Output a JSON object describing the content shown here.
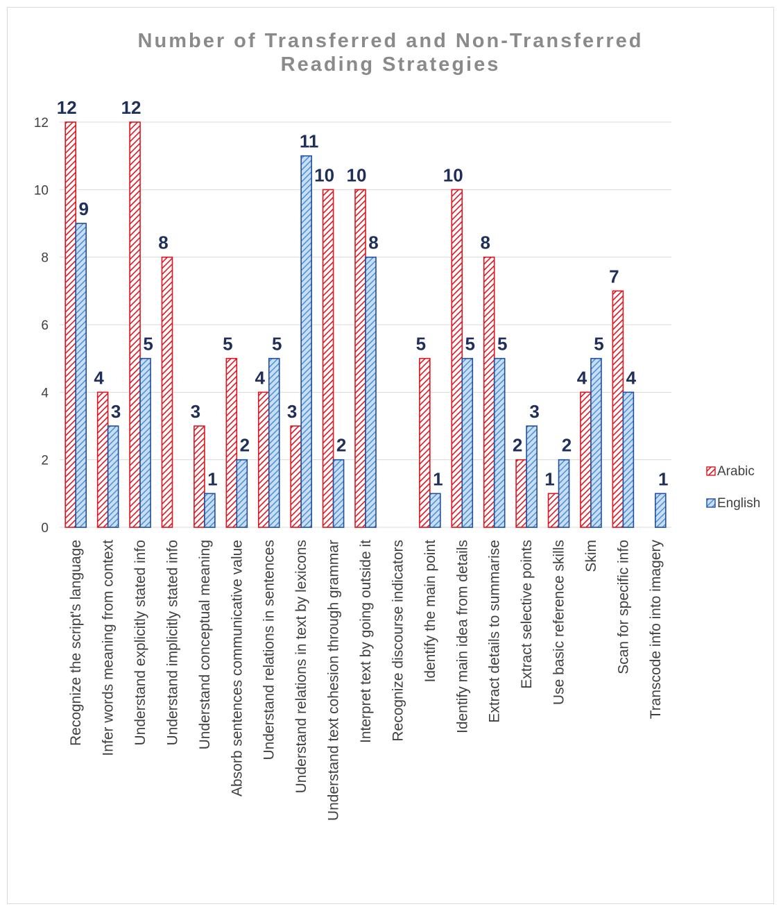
{
  "chart_data": {
    "type": "bar",
    "title_lines": [
      "Number of Transferred and Non-Transferred",
      "Reading Strategies"
    ],
    "categories": [
      "Recognize the script's language",
      "Infer words meaning from context",
      "Understand explicitly stated info",
      "Understand implicitly stated info",
      "Understand conceptual meaning",
      "Absorb sentences communicative value",
      "Understand relations in sentences",
      "Understand relations in text by lexicons",
      "Understand text cohesion through grammar",
      "Interpret text by going outside it",
      "Recognize discourse indicators",
      "Identify the main point",
      "Identify main idea from details",
      "Extract details to summarise",
      "Extract selective points",
      "Use basic reference skills",
      "Skim",
      "Scan for specific info",
      "Transcode info into imagery"
    ],
    "series": [
      {
        "name": "Arabic",
        "color": "#e0141e",
        "values": [
          12,
          4,
          12,
          8,
          3,
          5,
          4,
          3,
          10,
          10,
          null,
          5,
          10,
          8,
          2,
          1,
          4,
          7,
          null
        ]
      },
      {
        "name": "English",
        "color": "#2a6bbf",
        "values": [
          9,
          3,
          5,
          null,
          1,
          2,
          5,
          11,
          2,
          8,
          null,
          1,
          5,
          5,
          3,
          2,
          5,
          4,
          1
        ]
      }
    ],
    "ylim": [
      0,
      12
    ],
    "yticks": [
      0,
      2,
      4,
      6,
      8,
      10,
      12
    ],
    "grid": true,
    "legend_position": "right",
    "data_labels": true
  }
}
